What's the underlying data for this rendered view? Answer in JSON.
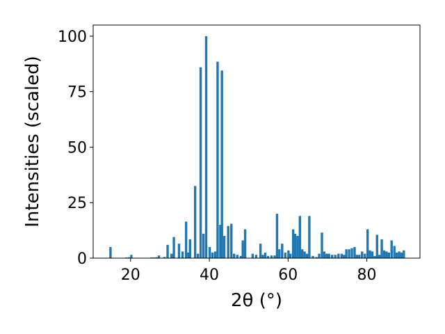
{
  "chart_data": {
    "type": "bar",
    "xlabel": "2θ (°)",
    "ylabel": "Intensities (scaled)",
    "xlim": [
      10.5,
      93.5
    ],
    "ylim": [
      0,
      105
    ],
    "x_ticks": [
      20,
      40,
      60,
      80
    ],
    "y_ticks": [
      0,
      25,
      50,
      75,
      100
    ],
    "bar_width": 0.6,
    "grid": false,
    "color": "#1f77b4",
    "x": [
      14.9,
      18.9,
      19.6,
      20.2,
      25.3,
      25.9,
      26.6,
      27.2,
      28.6,
      29.4,
      30.4,
      31.0,
      32.3,
      33.2,
      34.1,
      34.7,
      35.1,
      36.4,
      37.1,
      37.8,
      38.5,
      39.2,
      40.1,
      40.8,
      41.5,
      42.1,
      42.8,
      43.2,
      43.8,
      44.8,
      45.6,
      46.3,
      47.1,
      48.0,
      48.5,
      49.1,
      51.0,
      51.9,
      53.0,
      53.6,
      54.2,
      54.9,
      55.8,
      56.6,
      57.2,
      57.8,
      58.5,
      59.3,
      60.1,
      60.6,
      61.3,
      61.8,
      62.4,
      63.0,
      63.6,
      64.2,
      64.8,
      65.4,
      66.3,
      67.2,
      67.9,
      68.6,
      69.2,
      69.8,
      70.4,
      71.2,
      72.0,
      72.8,
      73.6,
      74.2,
      74.8,
      75.5,
      76.2,
      76.9,
      77.5,
      78.1,
      78.8,
      79.5,
      80.2,
      80.8,
      81.4,
      82.0,
      82.6,
      83.2,
      83.8,
      84.4,
      85.0,
      85.6,
      86.3,
      87.0,
      87.6,
      88.2,
      88.8,
      89.4
    ],
    "values": [
      5,
      0.3,
      0.4,
      1.5,
      0.3,
      0.3,
      0.4,
      1.2,
      0.5,
      6,
      2,
      9.5,
      6.5,
      3,
      16.5,
      2.5,
      8.5,
      32.5,
      2,
      86,
      11,
      100,
      5,
      2.5,
      3,
      88.5,
      15,
      84.5,
      10,
      14.5,
      15.5,
      2,
      1.5,
      1,
      8,
      13,
      2,
      1.5,
      6.5,
      1.5,
      2.5,
      1,
      1.2,
      1.2,
      20,
      4,
      6.5,
      2.5,
      3.5,
      2,
      13,
      11,
      10,
      19,
      4,
      3,
      2,
      19,
      1,
      0.5,
      2,
      11.5,
      3,
      2,
      2,
      1.5,
      1.5,
      2,
      2,
      1.5,
      4,
      4,
      4.5,
      5,
      1.5,
      1.5,
      3,
      2,
      13,
      3.5,
      3,
      1,
      10.5,
      1.5,
      8.5,
      3.5,
      3,
      2.5,
      8,
      5.5,
      2.5,
      3,
      2.5,
      3.5
    ]
  }
}
